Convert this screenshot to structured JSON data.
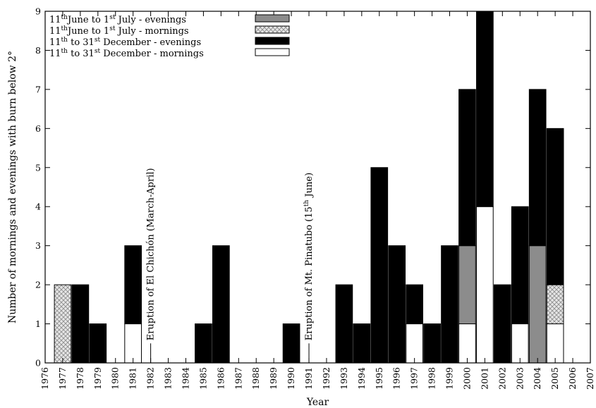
{
  "chart_data": {
    "type": "bar",
    "stacked": true,
    "xlabel": "Year",
    "ylabel": "Number of mornings and evenings with burn below 2°",
    "xlim": [
      1976,
      2007
    ],
    "ylim": [
      0,
      9
    ],
    "x_ticks": [
      1976,
      1977,
      1978,
      1979,
      1980,
      1981,
      1982,
      1983,
      1984,
      1985,
      1986,
      1987,
      1988,
      1989,
      1990,
      1991,
      1992,
      1993,
      1994,
      1995,
      1996,
      1997,
      1998,
      1999,
      2000,
      2001,
      2002,
      2003,
      2004,
      2005,
      2006,
      2007
    ],
    "y_ticks": [
      0,
      1,
      2,
      3,
      4,
      5,
      6,
      7,
      8,
      9
    ],
    "grid": false,
    "legend_position": "top-left",
    "series": [
      {
        "key": "jun_evenings",
        "name_parts": [
          "11",
          "th",
          "June to 1",
          "st",
          " July - evenings"
        ],
        "fill": "#8c8c8c",
        "pattern": "solid",
        "points": [
          {
            "x": 2000,
            "y": 2
          },
          {
            "x": 2004,
            "y": 3
          }
        ]
      },
      {
        "key": "jun_mornings",
        "name_parts": [
          "11",
          "th",
          "June to 1",
          "st",
          " July - mornings"
        ],
        "fill": "#dddddd",
        "pattern": "crosshatch",
        "points": [
          {
            "x": 1977,
            "y": 2
          },
          {
            "x": 2005,
            "y": 1
          }
        ]
      },
      {
        "key": "dec_evenings",
        "name_parts": [
          "11",
          "th",
          " to 31",
          "st",
          " December - evenings"
        ],
        "fill": "#000000",
        "pattern": "solid",
        "points": [
          {
            "x": 1978,
            "y": 2
          },
          {
            "x": 1979,
            "y": 1
          },
          {
            "x": 1981,
            "y": 2
          },
          {
            "x": 1985,
            "y": 1
          },
          {
            "x": 1986,
            "y": 3
          },
          {
            "x": 1990,
            "y": 1
          },
          {
            "x": 1993,
            "y": 2
          },
          {
            "x": 1994,
            "y": 1
          },
          {
            "x": 1995,
            "y": 5
          },
          {
            "x": 1996,
            "y": 3
          },
          {
            "x": 1997,
            "y": 1
          },
          {
            "x": 1998,
            "y": 1
          },
          {
            "x": 1999,
            "y": 3
          },
          {
            "x": 2000,
            "y": 4
          },
          {
            "x": 2001,
            "y": 5
          },
          {
            "x": 2002,
            "y": 2
          },
          {
            "x": 2003,
            "y": 3
          },
          {
            "x": 2004,
            "y": 4
          },
          {
            "x": 2005,
            "y": 4
          }
        ]
      },
      {
        "key": "dec_mornings",
        "name_parts": [
          "11",
          "th",
          " to 31",
          "st",
          " December - mornings"
        ],
        "fill": "#ffffff",
        "pattern": "solid",
        "points": [
          {
            "x": 1981,
            "y": 1
          },
          {
            "x": 1997,
            "y": 1
          },
          {
            "x": 2000,
            "y": 1
          },
          {
            "x": 2001,
            "y": 4
          },
          {
            "x": 2003,
            "y": 1
          },
          {
            "x": 2005,
            "y": 1
          }
        ]
      }
    ],
    "annotations": [
      {
        "x": 1982,
        "y": 0.5,
        "text_parts": [
          "Eruption of El Chichón (March-April)"
        ]
      },
      {
        "x": 1991,
        "y": 0.5,
        "text_parts": [
          "Eruption of Mt. Pinatubo (15",
          "th",
          " June)"
        ]
      }
    ]
  }
}
